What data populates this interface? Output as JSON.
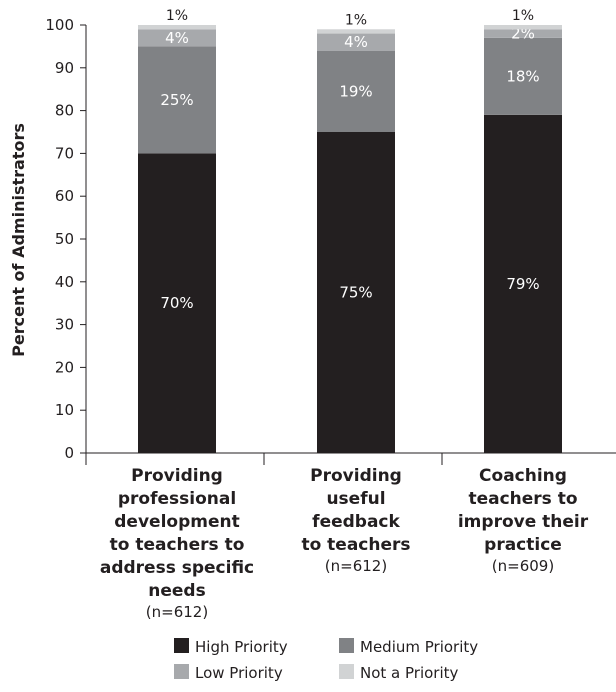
{
  "chart_data": {
    "type": "bar",
    "stacked": true,
    "ylabel": "Percent of Administrators",
    "ylim": [
      0,
      100
    ],
    "yticks": [
      "0",
      "10",
      "20",
      "30",
      "40",
      "50",
      "60",
      "70",
      "80",
      "90",
      "100"
    ],
    "categories": [
      {
        "lines": [
          "Providing",
          "professional",
          "development",
          "to teachers to",
          "address specific",
          "needs"
        ],
        "n": "(n=612)"
      },
      {
        "lines": [
          "Providing",
          "useful",
          "feedback",
          "to teachers"
        ],
        "n": "(n=612)"
      },
      {
        "lines": [
          "Coaching",
          "teachers to",
          "improve their",
          "practice"
        ],
        "n": "(n=609)"
      }
    ],
    "series": [
      {
        "name": "High Priority",
        "color": "#231f20",
        "label_color": "#ffffff",
        "values": [
          70,
          75,
          79
        ],
        "labels": [
          "70%",
          "75%",
          "79%"
        ]
      },
      {
        "name": "Medium Priority",
        "color": "#808285",
        "label_color": "#ffffff",
        "values": [
          25,
          19,
          18
        ],
        "labels": [
          "25%",
          "19%",
          "18%"
        ]
      },
      {
        "name": "Low Priority",
        "color": "#a7a9ac",
        "label_color": "#ffffff",
        "values": [
          4,
          4,
          2
        ],
        "labels": [
          "4%",
          "4%",
          "2%"
        ]
      },
      {
        "name": "Not a Priority",
        "color": "#d1d3d4",
        "label_color": "#231f20",
        "values": [
          1,
          1,
          1
        ],
        "labels": [
          "1%",
          "1%",
          "1%"
        ]
      }
    ],
    "legend_position": "bottom",
    "grid": false
  }
}
